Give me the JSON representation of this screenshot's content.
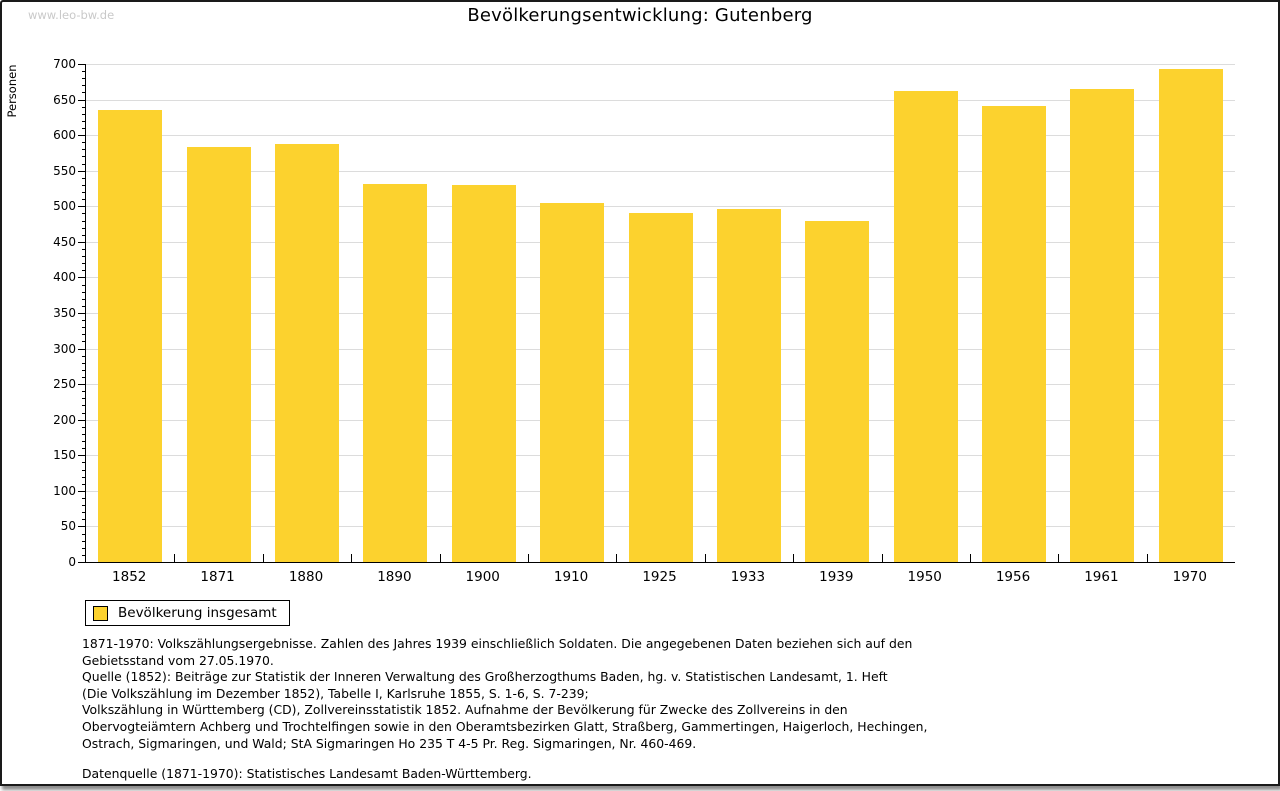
{
  "page": {
    "watermark": "www.leo-bw.de",
    "title": "Bevölkerungsentwicklung: Gutenberg"
  },
  "chart_data": {
    "type": "bar",
    "title": "Bevölkerungsentwicklung: Gutenberg",
    "xlabel": "",
    "ylabel": "Personen",
    "categories": [
      "1852",
      "1871",
      "1880",
      "1890",
      "1900",
      "1910",
      "1925",
      "1933",
      "1939",
      "1950",
      "1956",
      "1961",
      "1970"
    ],
    "values": [
      635,
      583,
      587,
      532,
      530,
      504,
      491,
      496,
      479,
      662,
      641,
      665,
      693
    ],
    "series_name": "Bevölkerung insgesamt",
    "ylim": [
      0,
      700
    ],
    "ytick_step": 50,
    "yminor_step": 10,
    "grid": true,
    "legend_position": "bottom-left",
    "bar_color": "#FCD22E",
    "grid_color": "#DCDCDC",
    "axis_color": "#000000",
    "watermark_color": "#C9C9C9"
  },
  "legend": {
    "label": "Bevölkerung insgesamt"
  },
  "footer": {
    "notes_lines": [
      "1871-1970: Volkszählungsergebnisse. Zahlen des Jahres 1939 einschließlich Soldaten. Die angegebenen Daten beziehen sich auf den",
      "Gebietsstand vom 27.05.1970.",
      "Quelle (1852): Beiträge zur Statistik der Inneren Verwaltung des Großherzogthums Baden, hg. v. Statistischen Landesamt, 1. Heft",
      "(Die Volkszählung im Dezember 1852), Tabelle I, Karlsruhe 1855, S. 1-6, S. 7-239;",
      "Volkszählung in Württemberg (CD), Zollvereinsstatistik 1852. Aufnahme der Bevölkerung für Zwecke des Zollvereins in den",
      "Obervogteiämtern Achberg und Trochtelfingen sowie in den Oberamtsbezirken Glatt, Straßberg, Gammertingen, Haigerloch, Hechingen,",
      "Ostrach, Sigmaringen, und Wald; StA Sigmaringen Ho 235 T 4-5 Pr. Reg. Sigmaringen, Nr. 460-469."
    ],
    "datasource": "Datenquelle (1871-1970): Statistisches Landesamt Baden-Württemberg."
  }
}
